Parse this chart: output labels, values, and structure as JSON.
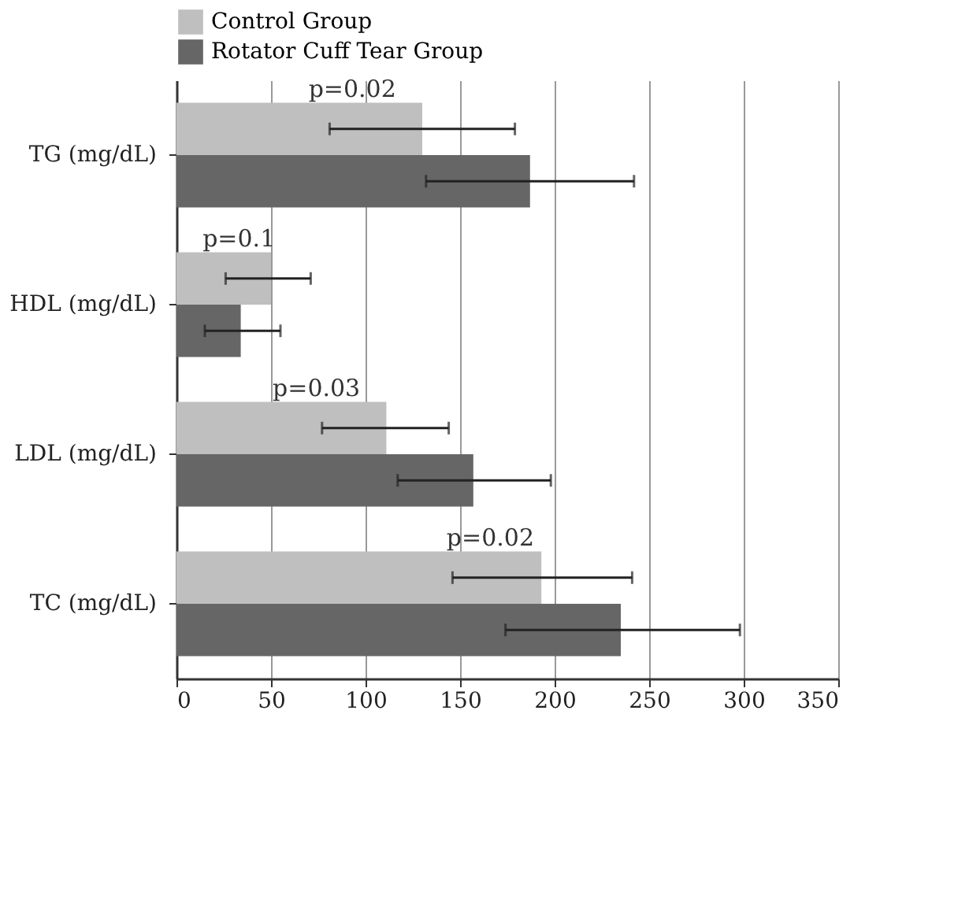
{
  "chart_data": {
    "type": "bar",
    "orientation": "horizontal",
    "categories": [
      "TG (mg/dL)",
      "HDL (mg/dL)",
      "LDL (mg/dL)",
      "TC (mg/dL)"
    ],
    "series": [
      {
        "name": "Control Group",
        "color": "#bfbfbf",
        "values": [
          130,
          50,
          111,
          193
        ],
        "errors": [
          [
            81,
            179
          ],
          [
            26,
            71
          ],
          [
            77,
            144
          ],
          [
            146,
            241
          ]
        ]
      },
      {
        "name": "Rotator Cuff Tear Group",
        "color": "#666666",
        "values": [
          187,
          34,
          157,
          235
        ],
        "errors": [
          [
            132,
            242
          ],
          [
            15,
            55
          ],
          [
            117,
            198
          ],
          [
            174,
            298
          ]
        ]
      }
    ],
    "xlim": [
      0,
      350
    ],
    "xticks": [
      0,
      50,
      100,
      150,
      200,
      250,
      300,
      350
    ],
    "grid": "x",
    "legend": "top left",
    "annotations": [
      {
        "text": "p=0.02",
        "x": 93,
        "y": "TG (mg/dL)"
      },
      {
        "text": "p=0.1",
        "x": 33,
        "y": "HDL (mg/dL)"
      },
      {
        "text": "p=0.03",
        "x": 74,
        "y": "LDL (mg/dL)"
      },
      {
        "text": "p=0.02",
        "x": 166,
        "y": "TC (mg/dL)"
      }
    ]
  }
}
